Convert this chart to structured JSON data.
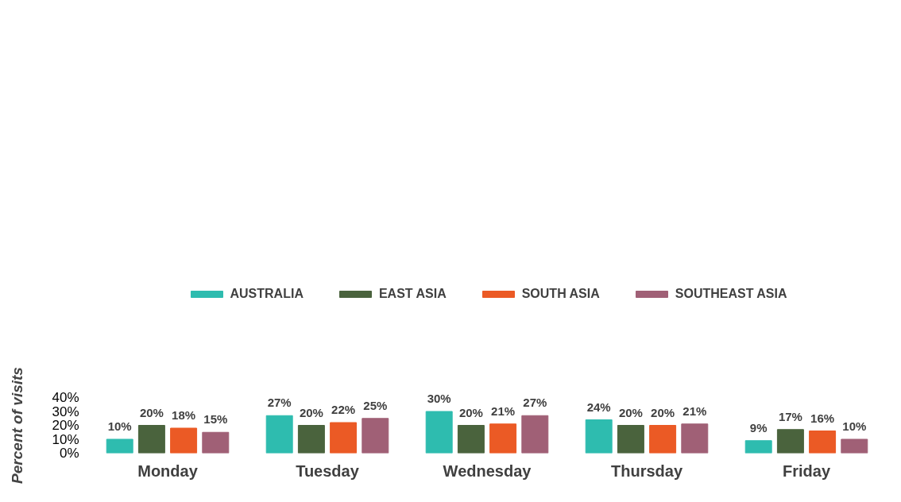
{
  "chart_data": {
    "type": "bar",
    "ylabel": "Percent of visits",
    "categories": [
      "Monday",
      "Tuesday",
      "Wednesday",
      "Thursday",
      "Friday"
    ],
    "series": [
      {
        "name": "AUSTRALIA",
        "color": "#2ebcaf",
        "values": [
          10,
          27,
          30,
          24,
          9
        ],
        "value_labels": [
          "10%",
          "27%",
          "30%",
          "24%",
          "9%"
        ]
      },
      {
        "name": "EAST ASIA",
        "color": "#4a633d",
        "values": [
          20,
          20,
          20,
          20,
          17
        ],
        "value_labels": [
          "20%",
          "20%",
          "20%",
          "20%",
          "17%"
        ]
      },
      {
        "name": "SOUTH ASIA",
        "color": "#eb5a25",
        "values": [
          18,
          22,
          21,
          20,
          16
        ],
        "value_labels": [
          "18%",
          "22%",
          "21%",
          "20%",
          "16%"
        ]
      },
      {
        "name": "SOUTHEAST ASIA",
        "color": "#a06076",
        "values": [
          15,
          25,
          27,
          21,
          10
        ],
        "value_labels": [
          "15%",
          "25%",
          "27%",
          "21%",
          "10%"
        ]
      }
    ],
    "ylim": [
      0,
      40
    ],
    "yticks": [
      {
        "value": 0,
        "label": "0%"
      },
      {
        "value": 10,
        "label": "10%"
      },
      {
        "value": 20,
        "label": "20%"
      },
      {
        "value": 30,
        "label": "30%"
      },
      {
        "value": 40,
        "label": "40%"
      }
    ],
    "grid": false,
    "legend": "top"
  }
}
